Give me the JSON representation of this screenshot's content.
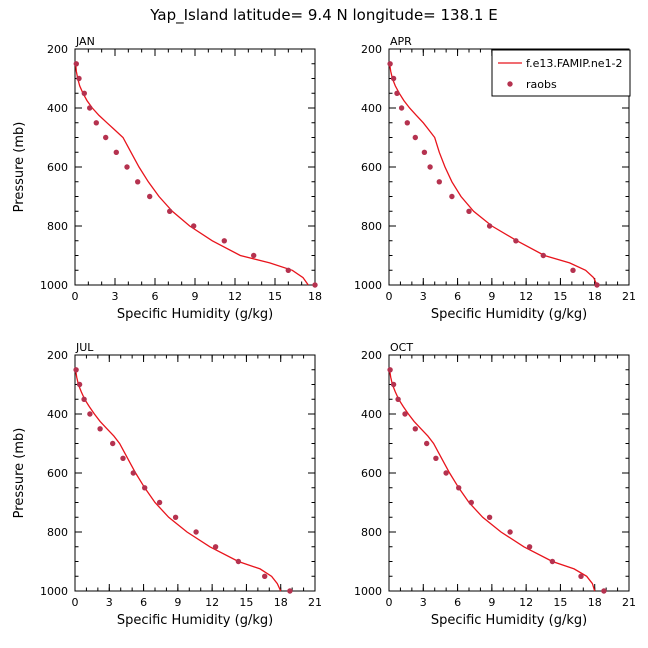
{
  "figure_title": "Yap_Island  latitude= 9.4 N longitude= 138.1 E",
  "colors": {
    "model_line": "#e8141c",
    "raobs_marker": "#b5324f",
    "axes": "#000000",
    "background": "#ffffff"
  },
  "legend": {
    "entries": [
      {
        "label": "f.e13.FAMIP.ne1-2",
        "style": "line",
        "color": "#e8141c"
      },
      {
        "label": "raobs",
        "style": "marker",
        "color": "#b5324f"
      }
    ],
    "placement": "top-right of APR panel"
  },
  "chart_data": [
    {
      "type": "line",
      "panel": "JAN",
      "xlabel": "Specific Humidity (g/kg)",
      "ylabel": "Pressure (mb)",
      "xlim": [
        0,
        18
      ],
      "ylim": [
        1000,
        200
      ],
      "y_inverted": true,
      "xticks": [
        "0",
        "3",
        "6",
        "9",
        "12",
        "15",
        "18"
      ],
      "yticks": [
        "200",
        "400",
        "600",
        "800",
        "1000"
      ],
      "grid": false,
      "series": [
        {
          "name": "f.e13.FAMIP.ne1-2",
          "style": "line",
          "x": [
            0.05,
            0.1,
            0.2,
            0.35,
            0.6,
            0.9,
            1.3,
            1.8,
            2.4,
            3.0,
            3.6,
            4.2,
            4.8,
            5.5,
            6.3,
            7.3,
            8.6,
            10.3,
            12.4,
            14.6,
            16.3,
            17.1,
            17.5
          ],
          "y": [
            250,
            275,
            300,
            325,
            350,
            375,
            400,
            425,
            450,
            475,
            500,
            550,
            600,
            650,
            700,
            750,
            800,
            850,
            900,
            925,
            950,
            975,
            1000
          ]
        },
        {
          "name": "raobs",
          "style": "marker",
          "x": [
            0.1,
            0.3,
            0.7,
            1.1,
            1.6,
            2.3,
            3.1,
            3.9,
            4.7,
            5.6,
            7.1,
            8.9,
            11.2,
            13.4,
            16.0,
            18.0
          ],
          "y": [
            250,
            300,
            350,
            400,
            450,
            500,
            550,
            600,
            650,
            700,
            750,
            800,
            850,
            900,
            950,
            1000
          ]
        }
      ]
    },
    {
      "type": "line",
      "panel": "APR",
      "xlabel": "Specific Humidity (g/kg)",
      "ylabel": "",
      "xlim": [
        0,
        21
      ],
      "ylim": [
        1000,
        200
      ],
      "y_inverted": true,
      "xticks": [
        "0",
        "3",
        "6",
        "9",
        "12",
        "15",
        "18",
        "21"
      ],
      "yticks": [
        "200",
        "400",
        "600",
        "800",
        "1000"
      ],
      "grid": false,
      "series": [
        {
          "name": "f.e13.FAMIP.ne1-2",
          "style": "line",
          "x": [
            0.05,
            0.15,
            0.3,
            0.55,
            0.9,
            1.3,
            1.8,
            2.4,
            3.0,
            3.5,
            4.0,
            4.4,
            4.9,
            5.5,
            6.3,
            7.4,
            9.0,
            11.2,
            13.6,
            15.8,
            17.2,
            17.9,
            18.2
          ],
          "y": [
            250,
            275,
            300,
            325,
            350,
            375,
            400,
            425,
            450,
            475,
            500,
            550,
            600,
            650,
            700,
            750,
            800,
            850,
            900,
            925,
            950,
            975,
            1000
          ]
        },
        {
          "name": "raobs",
          "style": "marker",
          "x": [
            0.1,
            0.4,
            0.7,
            1.1,
            1.6,
            2.3,
            3.1,
            3.6,
            4.4,
            5.5,
            7.0,
            8.8,
            11.1,
            13.5,
            16.1,
            18.2
          ],
          "y": [
            250,
            300,
            350,
            400,
            450,
            500,
            550,
            600,
            650,
            700,
            750,
            800,
            850,
            900,
            950,
            1000
          ]
        }
      ]
    },
    {
      "type": "line",
      "panel": "JUL",
      "xlabel": "Specific Humidity (g/kg)",
      "ylabel": "Pressure (mb)",
      "xlim": [
        0,
        21
      ],
      "ylim": [
        1000,
        200
      ],
      "y_inverted": true,
      "xticks": [
        "0",
        "3",
        "6",
        "9",
        "12",
        "15",
        "18",
        "21"
      ],
      "yticks": [
        "200",
        "400",
        "600",
        "800",
        "1000"
      ],
      "grid": false,
      "series": [
        {
          "name": "f.e13.FAMIP.ne1-2",
          "style": "line",
          "x": [
            0.05,
            0.15,
            0.3,
            0.55,
            0.85,
            1.25,
            1.7,
            2.2,
            2.8,
            3.4,
            3.9,
            4.6,
            5.3,
            6.1,
            7.0,
            8.2,
            9.8,
            11.8,
            14.3,
            16.2,
            17.2,
            17.7,
            18.0
          ],
          "y": [
            250,
            275,
            300,
            325,
            350,
            375,
            400,
            425,
            450,
            475,
            500,
            550,
            600,
            650,
            700,
            750,
            800,
            850,
            900,
            925,
            950,
            975,
            1000
          ]
        },
        {
          "name": "raobs",
          "style": "marker",
          "x": [
            0.1,
            0.4,
            0.8,
            1.3,
            2.2,
            3.3,
            4.2,
            5.1,
            6.1,
            7.4,
            8.8,
            10.6,
            12.3,
            14.3,
            16.6,
            18.8
          ],
          "y": [
            250,
            300,
            350,
            400,
            450,
            500,
            550,
            600,
            650,
            700,
            750,
            800,
            850,
            900,
            950,
            1000
          ]
        }
      ]
    },
    {
      "type": "line",
      "panel": "OCT",
      "xlabel": "Specific Humidity (g/kg)",
      "ylabel": "",
      "xlim": [
        0,
        21
      ],
      "ylim": [
        1000,
        200
      ],
      "y_inverted": true,
      "xticks": [
        "0",
        "3",
        "6",
        "9",
        "12",
        "15",
        "18",
        "21"
      ],
      "yticks": [
        "200",
        "400",
        "600",
        "800",
        "1000"
      ],
      "grid": false,
      "series": [
        {
          "name": "f.e13.FAMIP.ne1-2",
          "style": "line",
          "x": [
            0.05,
            0.15,
            0.3,
            0.55,
            0.85,
            1.25,
            1.7,
            2.2,
            2.8,
            3.4,
            3.9,
            4.6,
            5.3,
            6.1,
            7.0,
            8.2,
            9.8,
            11.8,
            14.3,
            16.2,
            17.3,
            17.8,
            18.0
          ],
          "y": [
            250,
            275,
            300,
            325,
            350,
            375,
            400,
            425,
            450,
            475,
            500,
            550,
            600,
            650,
            700,
            750,
            800,
            850,
            900,
            925,
            950,
            975,
            1000
          ]
        },
        {
          "name": "raobs",
          "style": "marker",
          "x": [
            0.1,
            0.4,
            0.8,
            1.4,
            2.3,
            3.3,
            4.1,
            5.0,
            6.1,
            7.2,
            8.8,
            10.6,
            12.3,
            14.3,
            16.8,
            18.8
          ],
          "y": [
            250,
            300,
            350,
            400,
            450,
            500,
            550,
            600,
            650,
            700,
            750,
            800,
            850,
            900,
            950,
            1000
          ]
        }
      ]
    }
  ]
}
